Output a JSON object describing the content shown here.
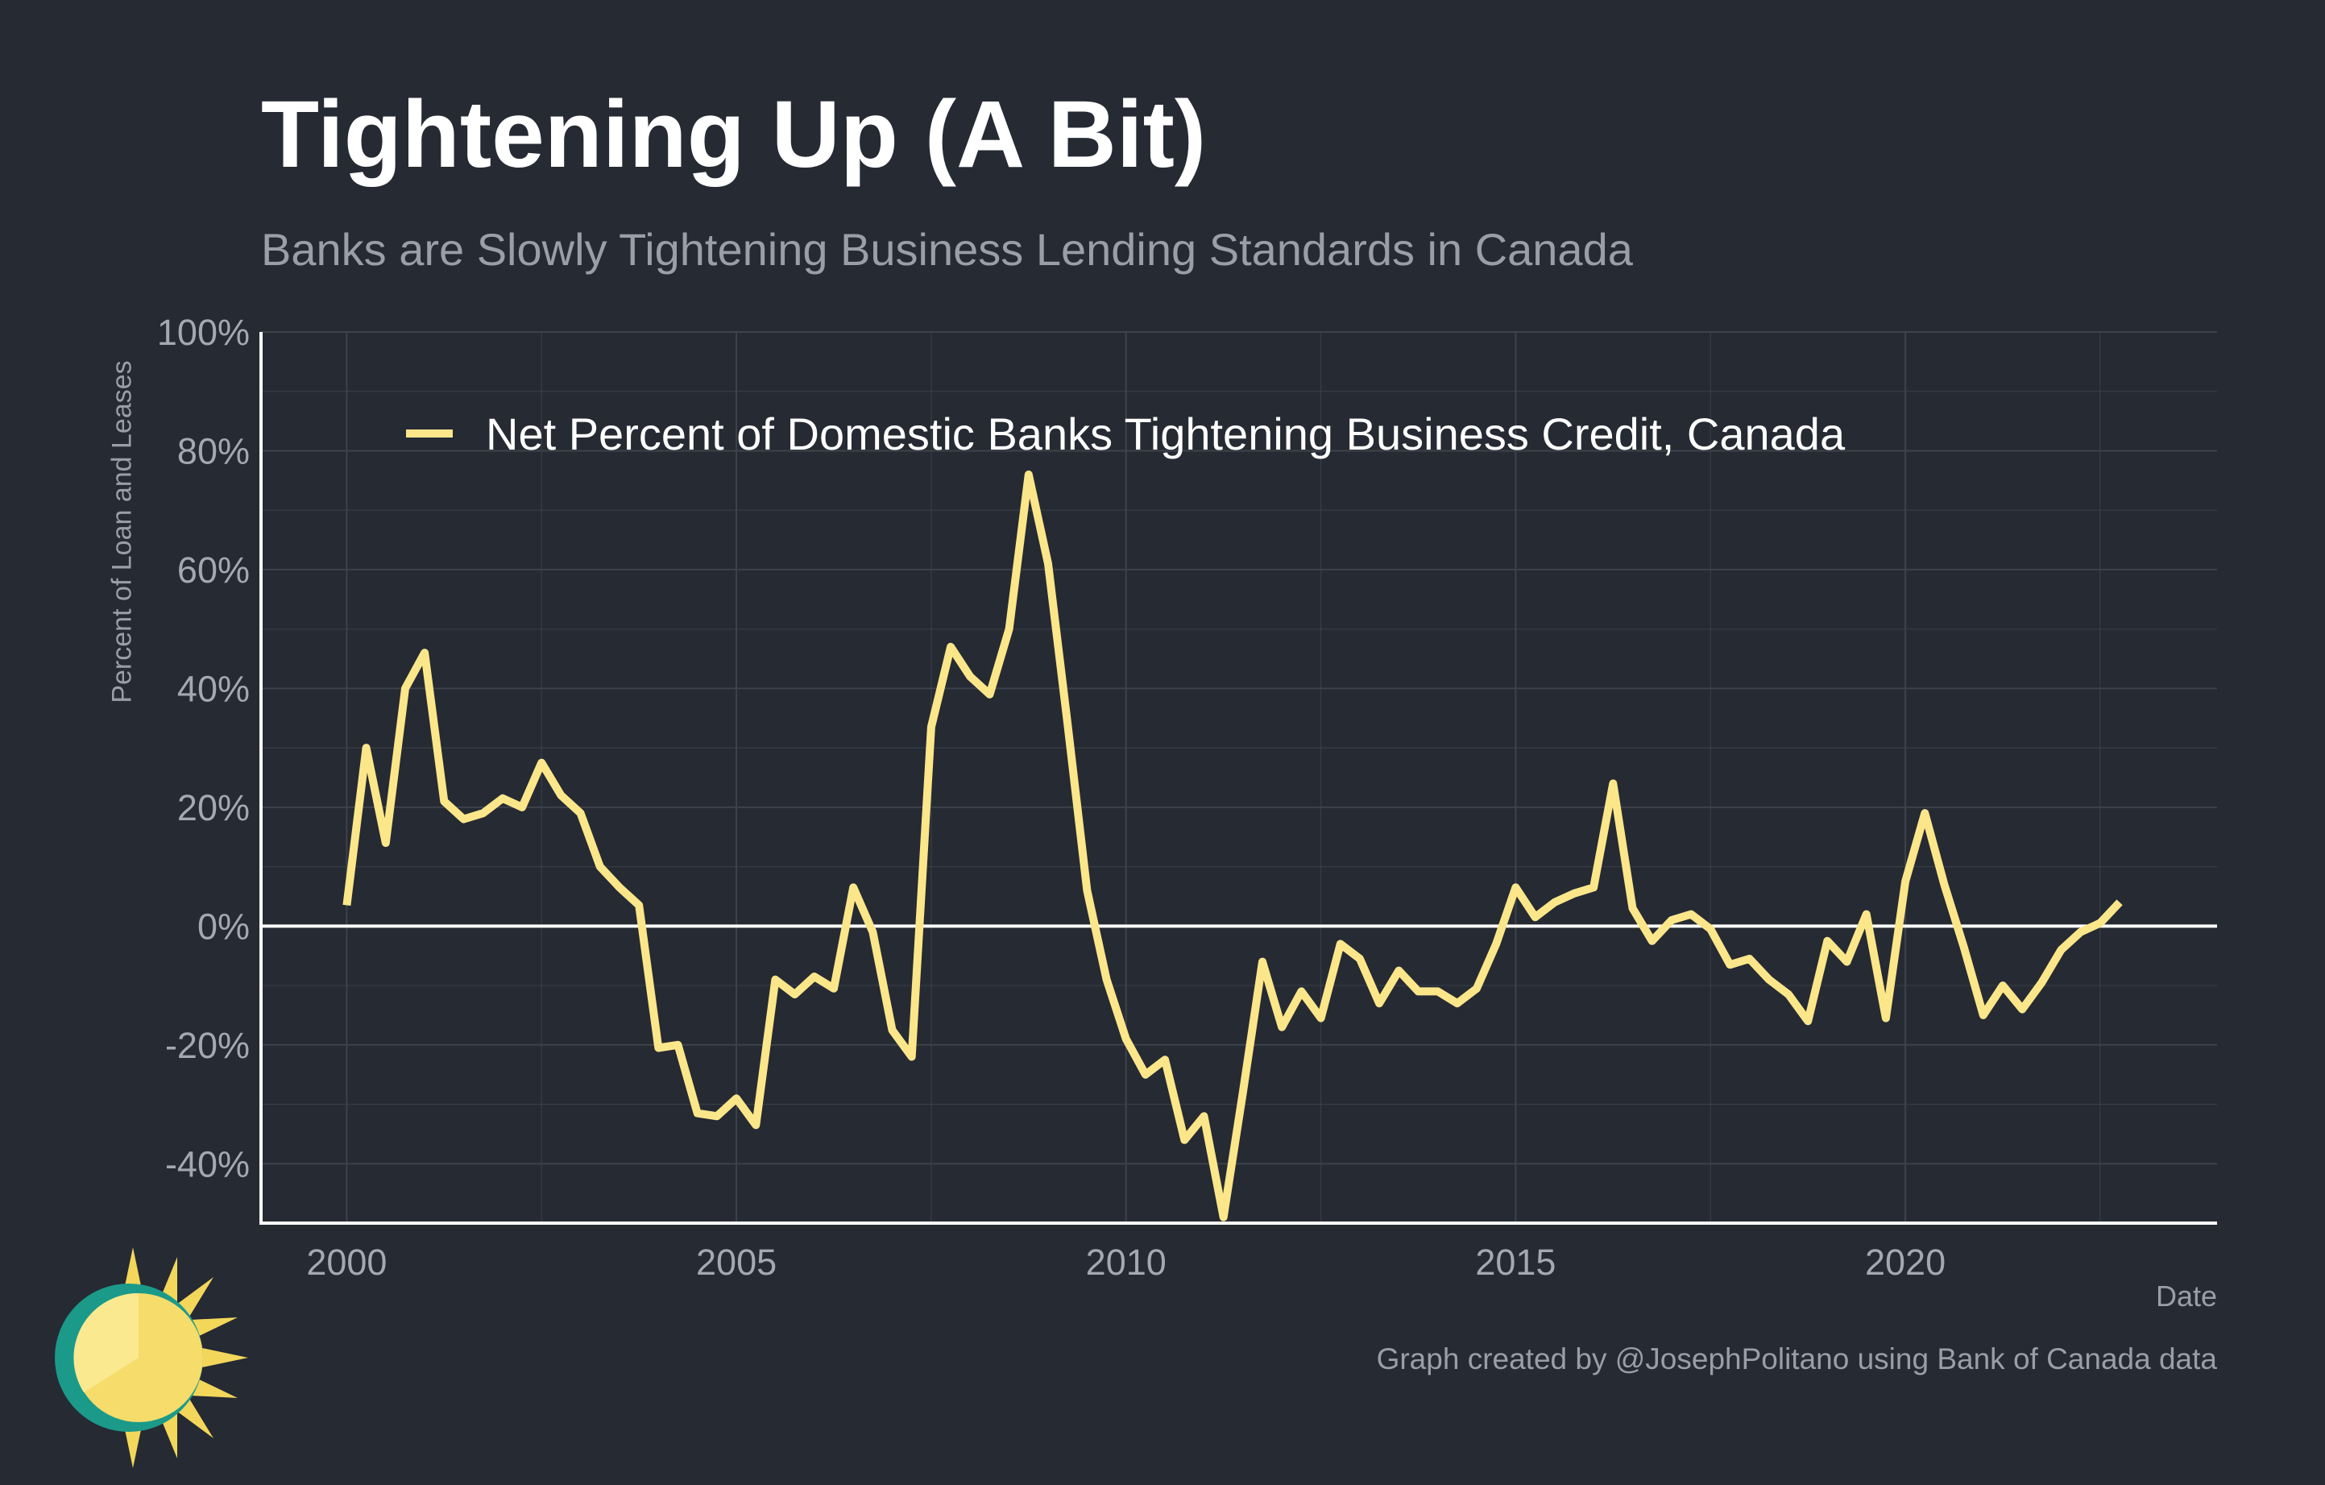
{
  "title": "Tightening Up (A Bit)",
  "subtitle": "Banks are Slowly Tightening Business Lending Standards in Canada",
  "caption": "Graph created by @JosephPolitano using Bank of Canada data",
  "colors": {
    "background": "#252a33",
    "line": "#fbe68a",
    "zero_line": "#ffffff",
    "grid": "#3d424b"
  },
  "chart_data": {
    "type": "line",
    "xlabel": "Date",
    "ylabel": "Percent of Loan and Leases",
    "xlim": [
      1998.9,
      2024.0
    ],
    "ylim": [
      -50,
      100
    ],
    "x_ticks": [
      2000,
      2005,
      2010,
      2015,
      2020
    ],
    "x_tick_labels": [
      "2000",
      "2005",
      "2010",
      "2015",
      "2020"
    ],
    "y_ticks": [
      -40,
      -20,
      0,
      20,
      40,
      60,
      80,
      100
    ],
    "y_tick_labels": [
      "-40%",
      "-20%",
      "0%",
      "20%",
      "40%",
      "60%",
      "80%",
      "100%"
    ],
    "grid": true,
    "legend": "top-left, inside plot",
    "series": [
      {
        "name": "Net Percent of Domestic Banks Tightening Business Credit, Canada",
        "x": [
          "2000 Q1",
          "2000 Q2",
          "2000 Q3",
          "2000 Q4",
          "2001 Q1",
          "2001 Q2",
          "2001 Q3",
          "2001 Q4",
          "2002 Q1",
          "2002 Q2",
          "2002 Q3",
          "2002 Q4",
          "2003 Q1",
          "2003 Q2",
          "2003 Q3",
          "2003 Q4",
          "2004 Q1",
          "2004 Q2",
          "2004 Q3",
          "2004 Q4",
          "2005 Q1",
          "2005 Q2",
          "2005 Q3",
          "2005 Q4",
          "2006 Q1",
          "2006 Q2",
          "2006 Q3",
          "2006 Q4",
          "2007 Q1",
          "2007 Q2",
          "2007 Q3",
          "2007 Q4",
          "2008 Q1",
          "2008 Q2",
          "2008 Q3",
          "2008 Q4",
          "2009 Q1",
          "2009 Q2",
          "2009 Q3",
          "2009 Q4",
          "2010 Q1",
          "2010 Q2",
          "2010 Q3",
          "2010 Q4",
          "2011 Q1",
          "2011 Q2",
          "2011 Q3",
          "2011 Q4",
          "2012 Q1",
          "2012 Q2",
          "2012 Q3",
          "2012 Q4",
          "2013 Q1",
          "2013 Q2",
          "2013 Q3",
          "2013 Q4",
          "2014 Q1",
          "2014 Q2",
          "2014 Q3",
          "2014 Q4",
          "2015 Q1",
          "2015 Q2",
          "2015 Q3",
          "2015 Q4",
          "2016 Q1",
          "2016 Q2",
          "2016 Q3",
          "2016 Q4",
          "2017 Q1",
          "2017 Q2",
          "2017 Q3",
          "2017 Q4",
          "2018 Q1",
          "2018 Q2",
          "2018 Q3",
          "2018 Q4",
          "2019 Q1",
          "2019 Q2",
          "2019 Q3",
          "2019 Q4",
          "2020 Q1",
          "2020 Q2",
          "2020 Q3",
          "2020 Q4",
          "2021 Q1",
          "2021 Q2",
          "2021 Q3",
          "2021 Q4",
          "2022 Q1",
          "2022 Q2",
          "2022 Q3",
          "2022 Q4"
        ],
        "values": [
          3.5,
          30,
          14,
          40,
          46,
          21,
          18,
          19,
          21.5,
          20,
          27.5,
          22,
          19,
          10,
          6.5,
          3.5,
          -20.5,
          -20,
          -31.5,
          -32,
          -29,
          -33.5,
          -9,
          -11.5,
          -8.5,
          -10.5,
          6.5,
          -1,
          -17.5,
          -22,
          33.5,
          47,
          42,
          39,
          50,
          76,
          61,
          34,
          6,
          -9,
          -19,
          -25,
          -22.5,
          -36,
          -32,
          -49,
          -28,
          -6,
          -17,
          -11,
          -15.5,
          -3,
          -5.5,
          -13,
          -7.5,
          -11,
          -11,
          -13,
          -10.5,
          -3,
          6.5,
          1.5,
          4,
          5.5,
          6.5,
          24,
          3,
          -2.5,
          1,
          2,
          -0.5,
          -6.5,
          -5.5,
          -9,
          -11.5,
          -16,
          -2.5,
          -6,
          2,
          -15.5,
          7.5,
          19,
          7,
          -3.5,
          -15,
          -10,
          -14,
          -9.5,
          -4,
          -1,
          0.5,
          4
        ]
      }
    ]
  }
}
